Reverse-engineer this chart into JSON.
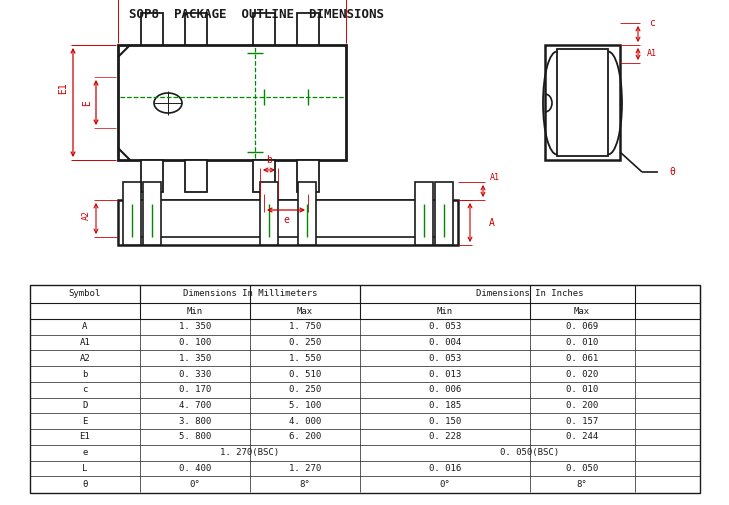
{
  "title": "SOP8  PACKAGE  OUTLINE  DIMENSIONS",
  "bg_color": "#ffffff",
  "black": "#1a1a1a",
  "red": "#cc0000",
  "green": "#008800",
  "table_data": [
    [
      "A",
      "1. 350",
      "1. 750",
      "0. 053",
      "0. 069"
    ],
    [
      "A1",
      "0. 100",
      "0. 250",
      "0. 004",
      "0. 010"
    ],
    [
      "A2",
      "1. 350",
      "1. 550",
      "0. 053",
      "0. 061"
    ],
    [
      "b",
      "0. 330",
      "0. 510",
      "0. 013",
      "0. 020"
    ],
    [
      "c",
      "0. 170",
      "0. 250",
      "0. 006",
      "0. 010"
    ],
    [
      "D",
      "4. 700",
      "5. 100",
      "0. 185",
      "0. 200"
    ],
    [
      "E",
      "3. 800",
      "4. 000",
      "0. 150",
      "0. 157"
    ],
    [
      "E1",
      "5. 800",
      "6. 200",
      "0. 228",
      "0. 244"
    ],
    [
      "e",
      "1. 270(BSC)",
      "",
      "0. 050(BSC)",
      ""
    ],
    [
      "L",
      "0. 400",
      "1. 270",
      "0. 016",
      "0. 050"
    ],
    [
      "θ",
      "0°",
      "8°",
      "0°",
      "8°"
    ]
  ]
}
